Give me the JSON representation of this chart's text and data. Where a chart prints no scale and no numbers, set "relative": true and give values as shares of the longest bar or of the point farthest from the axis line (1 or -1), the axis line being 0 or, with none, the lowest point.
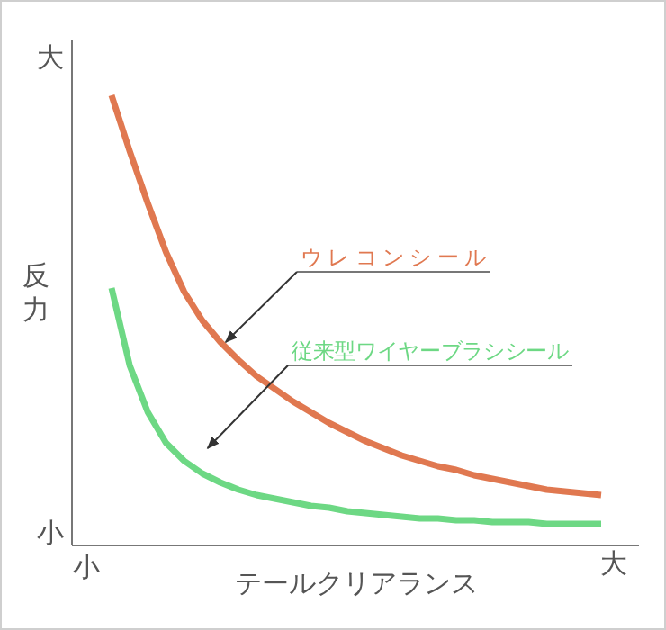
{
  "chart_data": {
    "type": "line",
    "relative": true,
    "xlabel": "テールクリアランス",
    "ylabel": "反力",
    "categories": [
      null,
      null,
      null,
      null,
      null,
      null,
      null,
      null,
      null,
      null,
      null,
      null,
      null,
      null,
      null,
      null,
      null,
      null,
      null,
      null,
      null,
      null,
      null,
      null,
      null,
      null,
      null,
      null
    ],
    "series": [
      {
        "name": "ウレコンシール",
        "color": "#e07850",
        "values": [
          1.0,
          0.876,
          0.76,
          0.652,
          0.564,
          0.5,
          0.452,
          0.412,
          0.376,
          0.348,
          0.32,
          0.296,
          0.272,
          0.252,
          0.232,
          0.216,
          0.2,
          0.188,
          0.176,
          0.168,
          0.156,
          0.148,
          0.14,
          0.132,
          0.124,
          0.12,
          0.116,
          0.112
        ]
      },
      {
        "name": "従来型ワイヤーブラシシール",
        "color": "#6dd884",
        "values": [
          0.572,
          0.4,
          0.296,
          0.228,
          0.188,
          0.16,
          0.14,
          0.124,
          0.112,
          0.104,
          0.096,
          0.088,
          0.084,
          0.076,
          0.072,
          0.068,
          0.064,
          0.06,
          0.06,
          0.056,
          0.056,
          0.052,
          0.052,
          0.052,
          0.048,
          0.048,
          0.048,
          0.048
        ]
      }
    ],
    "annotations": [
      "大",
      "小",
      "小",
      "大"
    ],
    "legend": false,
    "grid": false,
    "marker": "none",
    "line_style": "solid"
  }
}
